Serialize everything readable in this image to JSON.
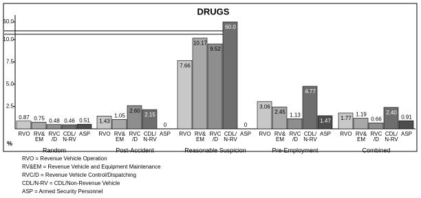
{
  "chart_data": {
    "type": "bar",
    "title": "DRUGS",
    "categories": [
      "Random",
      "Post-Accident",
      "Reasonable Suspicion",
      "Pre-Employment",
      "Combined"
    ],
    "series": [
      {
        "name": "RVO",
        "color": "#c8c8c8",
        "values": [
          0.87,
          1.43,
          7.66,
          3.06,
          1.77
        ],
        "value_labels": [
          "0.87",
          "1.43",
          "7.66",
          "3.06",
          "1.77"
        ]
      },
      {
        "name": "RV&\nEM",
        "color": "#a8a8a8",
        "values": [
          0.75,
          1.05,
          10.17,
          2.45,
          1.19
        ],
        "value_labels": [
          "0.75",
          "1.05",
          "10.17",
          "2.45",
          "1.19"
        ]
      },
      {
        "name": "RVC\n/D",
        "color": "#8e8e8e",
        "values": [
          0.48,
          2.6,
          9.52,
          1.13,
          0.66
        ],
        "value_labels": [
          "0.48",
          "2.60",
          "9.52",
          "1.13",
          "0.66"
        ]
      },
      {
        "name": "CDL/\nN-RV",
        "color": "#6e6e6e",
        "values": [
          0.46,
          2.15,
          60,
          4.77,
          2.4
        ],
        "value_labels": [
          "0.46",
          "2.15",
          "60.0",
          "4.77",
          "2.40"
        ]
      },
      {
        "name": "ASP",
        "color": "#4e4e4e",
        "values": [
          0.51,
          0,
          0,
          1.47,
          0.91
        ],
        "value_labels": [
          "0.51",
          "0",
          "0",
          "1.47",
          "0.91"
        ]
      }
    ],
    "ylim": [
      0,
      61
    ],
    "axis_break": [
      10.6,
      59
    ],
    "yticks": [
      2.5,
      {
        "value": 5,
        "label": "5.0"
      },
      7.5,
      {
        "value": 10,
        "label": "10.0"
      },
      {
        "value": 60,
        "label": "60.0"
      }
    ],
    "y_unit": "%",
    "notes": [
      "RVO = Revenue Vehicle Operation",
      "RV&EM = Revenue Vehicle and Equipment Maintenance",
      "RVC/D = Revenue Vehicle Control/Dispatching",
      "CDL/N-RV = CDL/Non-Revenue Vehicle",
      "ASP = Armed Security Personnel"
    ]
  }
}
